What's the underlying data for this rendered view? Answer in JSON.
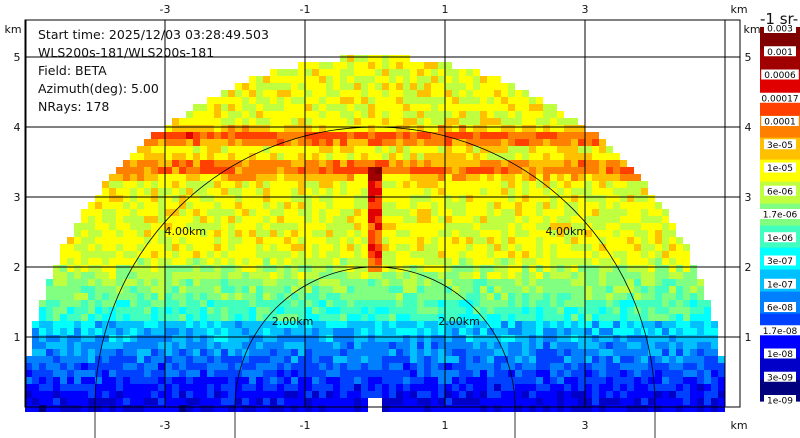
{
  "info": {
    "start_time": "Start time: 2025/12/03 03:28:49.503",
    "instrument": "WLS200s-181/WLS200s-181",
    "field": "Field: BETA",
    "azimuth": "Azimuth(deg): 5.00",
    "nrays": "NRays: 178"
  },
  "colorbar_title": "-1 sr-",
  "colorbar_top_label": "0.003",
  "colorbar_labels": [
    "0.001",
    "0.0006",
    "0.00017",
    "0.0001",
    "3e-05",
    "1e-05",
    "6e-06",
    "1.7e-06",
    "1e-06",
    "3e-07",
    "1e-07",
    "6e-08",
    "1.7e-08",
    "1e-08",
    "3e-09",
    "1e-09"
  ],
  "colors": {
    "background": "#ffffff",
    "grid": "#000000",
    "colorbar": [
      "#00007f",
      "#0000c8",
      "#0000ff",
      "#0040ff",
      "#0080ff",
      "#00c0ff",
      "#00ffff",
      "#40ffbf",
      "#80ff80",
      "#c0ff40",
      "#ffff00",
      "#ffc000",
      "#ff8000",
      "#ff4000",
      "#e00000",
      "#a00000",
      "#800000"
    ]
  },
  "chart_data": {
    "type": "heatmap",
    "title": "",
    "xlabel": "km",
    "ylabel": "km",
    "x_ticks": [
      -3,
      -1,
      1,
      3
    ],
    "y_ticks": [
      1,
      2,
      3,
      4,
      5
    ],
    "xlim": [
      -5.2,
      5.2
    ],
    "ylim": [
      0,
      5.95
    ],
    "range_rings_km": [
      2.0,
      4.0
    ],
    "range_ring_labels": [
      "2.00km",
      "4.00km"
    ],
    "max_range_km": 5.0,
    "field": "BETA",
    "azimuth_deg": 5.0,
    "nrays": 178,
    "features": [
      {
        "name": "aerosol layer",
        "height_km": 3.85,
        "value_level": "1e-05"
      },
      {
        "name": "aerosol layer",
        "height_km": 3.4,
        "value_level": "3e-05"
      },
      {
        "name": "plume",
        "x_km": 0.0,
        "height_km_range": [
          1.9,
          3.4
        ],
        "value_level": "6e-06"
      }
    ]
  }
}
